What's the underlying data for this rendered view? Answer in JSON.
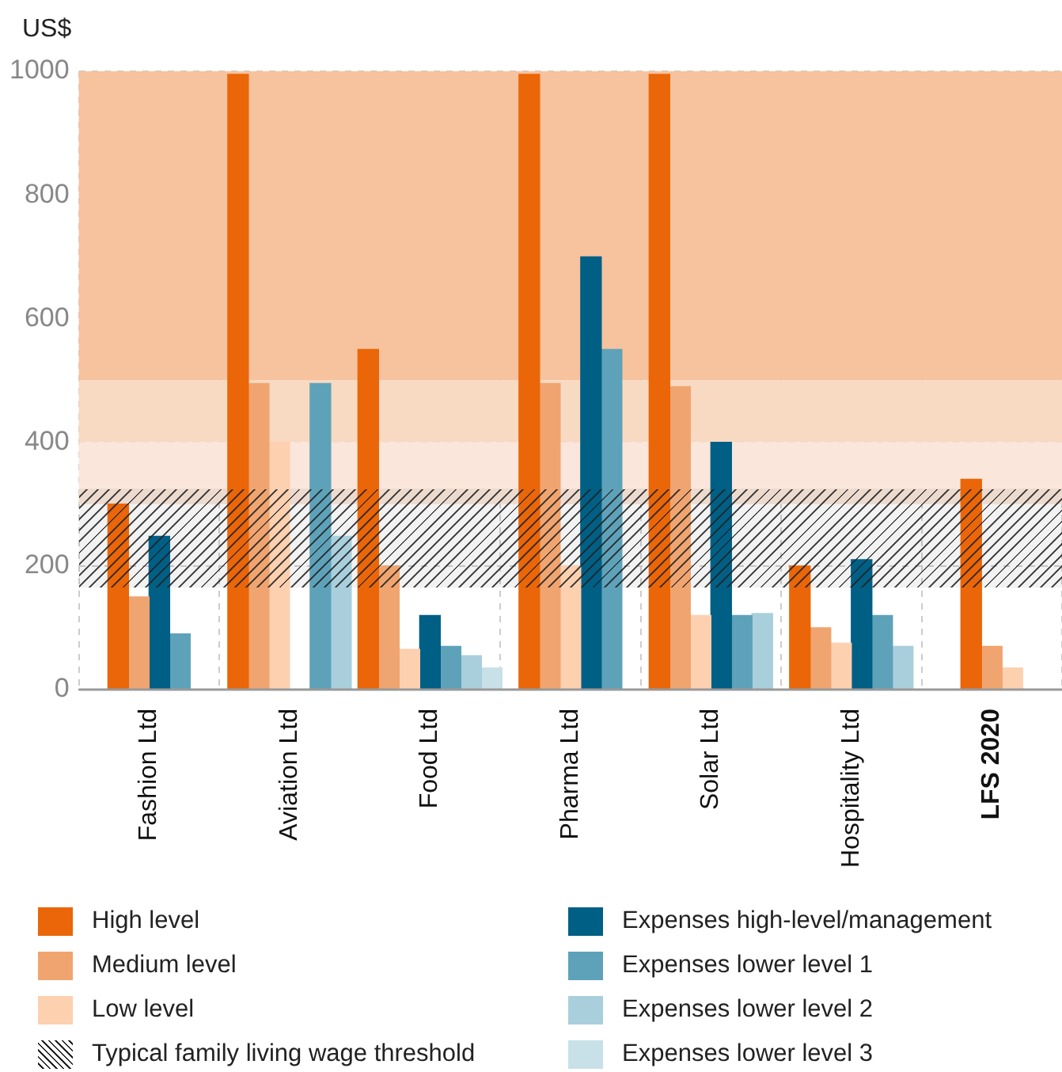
{
  "chart_data": {
    "type": "bar",
    "ylabel": "US$",
    "categories": [
      "Fashion Ltd",
      "Aviation Ltd",
      "Food Ltd",
      "Pharma Ltd",
      "Solar Ltd",
      "Hospitality Ltd",
      "LFS 2020"
    ],
    "series": [
      {
        "name": "High level",
        "color": "#ea6608",
        "values": [
          300,
          995,
          550,
          995,
          995,
          200,
          340
        ]
      },
      {
        "name": "Medium level",
        "color": "#f0a46f",
        "values": [
          150,
          495,
          200,
          495,
          490,
          100,
          70
        ]
      },
      {
        "name": "Low level",
        "color": "#fdd0b0",
        "values": [
          null,
          400,
          65,
          200,
          120,
          75,
          35
        ]
      },
      {
        "name": "Expenses high-level/management",
        "color": "#005f85",
        "values": [
          248,
          0,
          120,
          700,
          400,
          210,
          null
        ]
      },
      {
        "name": "Expenses lower level 1",
        "color": "#5ea2ba",
        "values": [
          90,
          495,
          70,
          550,
          120,
          120,
          null
        ]
      },
      {
        "name": "Expenses lower level 2",
        "color": "#a9cfdc",
        "values": [
          null,
          248,
          55,
          null,
          123,
          70,
          null
        ]
      },
      {
        "name": "Expenses lower level 3",
        "color": "#c8e1e8",
        "values": [
          null,
          null,
          35,
          null,
          null,
          null,
          null
        ]
      }
    ],
    "bands": [
      {
        "axis": "y",
        "from": 500,
        "to": 1000,
        "color": "#f7c29e"
      },
      {
        "axis": "y",
        "from": 400,
        "to": 500,
        "color": "#f8d9c1"
      },
      {
        "axis": "y",
        "from": 300,
        "to": 400,
        "color": "#fae6da"
      },
      {
        "axis": "y",
        "from": 165,
        "to": 325,
        "label": "Typical family living wage threshold",
        "color": "#222222"
      }
    ],
    "ylim": [
      0,
      1000
    ],
    "yticks": [
      0,
      200,
      400,
      600,
      800,
      1000
    ],
    "grid": true,
    "legend": "bottom"
  }
}
